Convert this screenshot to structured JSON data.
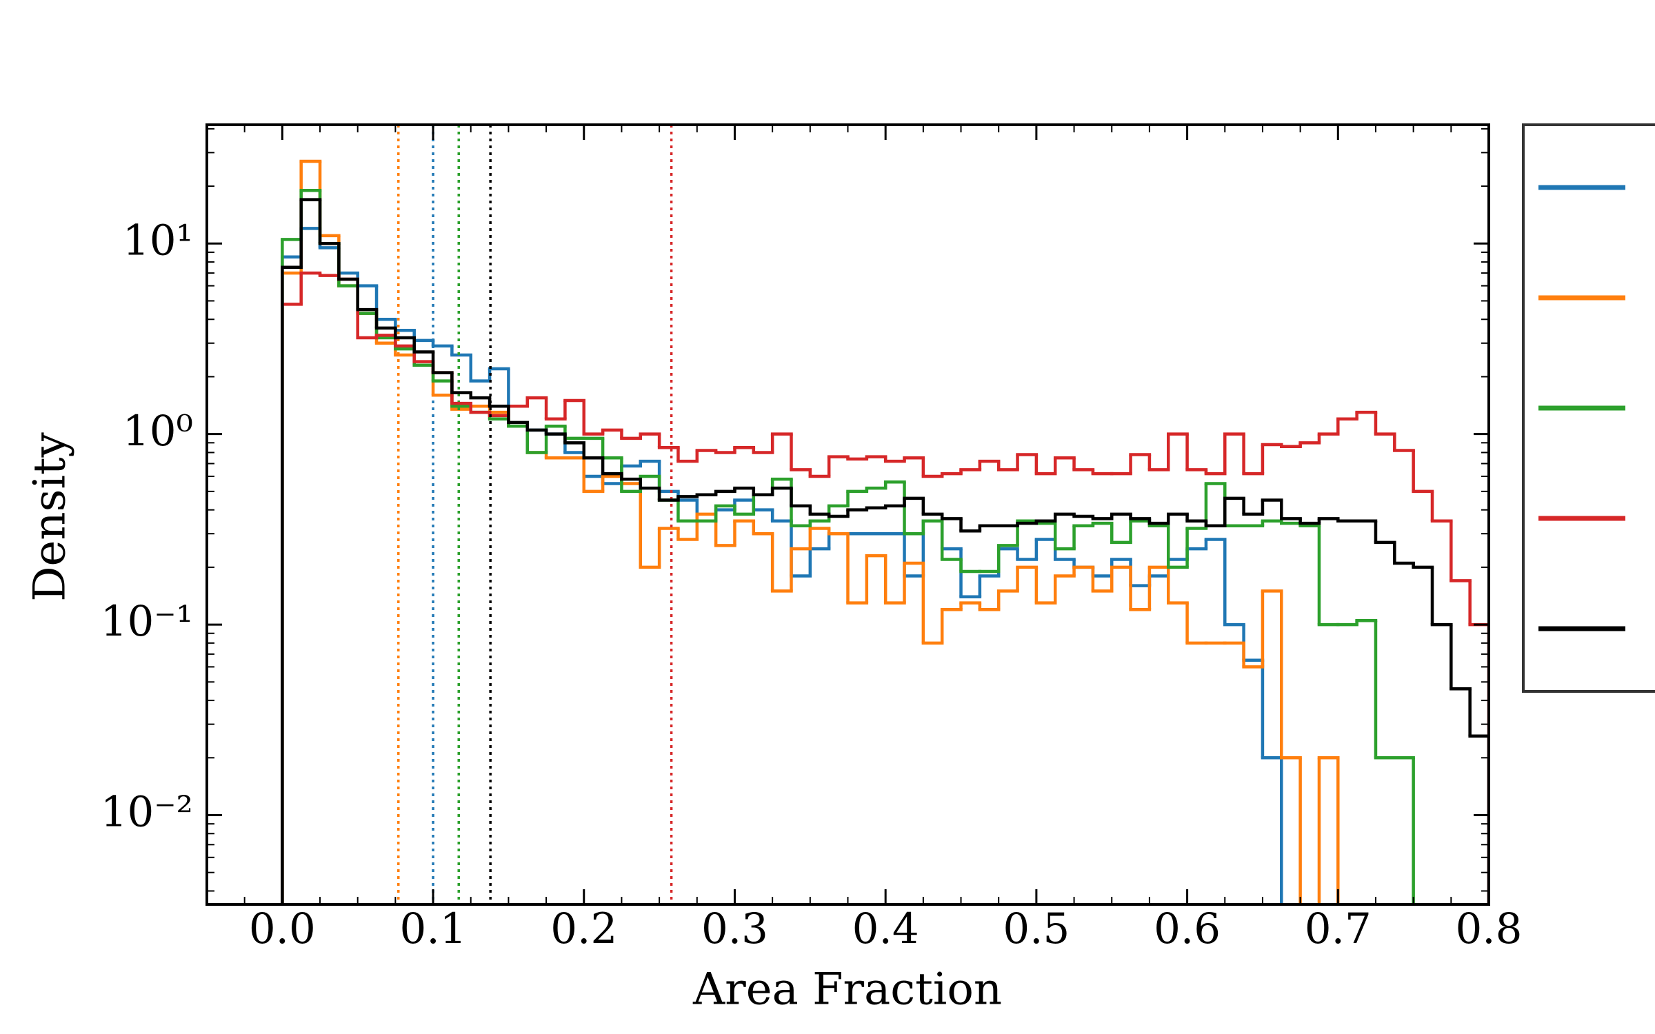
{
  "chart_data": {
    "type": "histogram",
    "x_label": "Area Fraction",
    "y_label": "Density",
    "xlim": [
      -0.05,
      0.8
    ],
    "xticks": [
      {
        "value": 0,
        "label": "0.0"
      },
      0.1,
      0.2,
      0.3,
      0.4,
      0.5,
      0.6,
      0.7,
      0.8
    ],
    "ylim": [
      0.0034,
      42
    ],
    "y_scale": "log",
    "yticks": [
      {
        "value": 0.01,
        "label": "10⁻²"
      },
      {
        "value": 0.1,
        "label": "10⁻¹"
      },
      {
        "value": 1,
        "label": "10⁰"
      },
      {
        "value": 10,
        "label": "10¹"
      }
    ],
    "bins": [
      0,
      0.0125,
      0.025,
      0.0375,
      0.05,
      0.0625,
      0.075,
      0.0875,
      0.1,
      0.1125,
      0.125,
      0.1375,
      0.15,
      0.1625,
      0.175,
      0.1875,
      0.2,
      0.2125,
      0.225,
      0.2375,
      0.25,
      0.2625,
      0.275,
      0.2875,
      0.3,
      0.3125,
      0.325,
      0.3375,
      0.35,
      0.3625,
      0.375,
      0.3875,
      0.4,
      0.4125,
      0.425,
      0.4375,
      0.45,
      0.4625,
      0.475,
      0.4875,
      0.5,
      0.5125,
      0.525,
      0.5375,
      0.55,
      0.5625,
      0.575,
      0.5875,
      0.6,
      0.6125,
      0.625,
      0.6375,
      0.65,
      0.6625,
      0.675,
      0.6875,
      0.7,
      0.7125,
      0.725,
      0.7375,
      0.75,
      0.7625,
      0.775,
      0.7875,
      0.8
    ],
    "series": [
      {
        "color": "#1f77b4",
        "mean": 0.1,
        "values": [
          8.5,
          12,
          9.5,
          7,
          6,
          4,
          3.5,
          3.1,
          2.9,
          2.6,
          1.9,
          2.2,
          1.1,
          1.05,
          1.0,
          0.8,
          0.6,
          0.55,
          0.68,
          0.72,
          0.5,
          0.45,
          0.35,
          0.4,
          0.45,
          0.4,
          0.35,
          0.18,
          0.25,
          0.3,
          0.3,
          0.3,
          0.3,
          0.18,
          0.35,
          0.25,
          0.14,
          0.18,
          0.25,
          0.22,
          0.28,
          0.22,
          0.2,
          0.18,
          0.22,
          0.16,
          0.18,
          0.22,
          0.25,
          0.28,
          0.1,
          0.065,
          0.02,
          0,
          0,
          0,
          0,
          0,
          0,
          0,
          0,
          0,
          0,
          0
        ]
      },
      {
        "color": "#ff7f0e",
        "mean": 0.077,
        "values": [
          7,
          27,
          11,
          6,
          4.3,
          3,
          2.6,
          2.3,
          1.6,
          1.35,
          1.4,
          1.3,
          1.1,
          0.8,
          0.75,
          0.75,
          0.5,
          0.6,
          0.55,
          0.2,
          0.32,
          0.28,
          0.38,
          0.26,
          0.35,
          0.3,
          0.15,
          0.25,
          0.32,
          0.3,
          0.13,
          0.23,
          0.13,
          0.21,
          0.08,
          0.12,
          0.13,
          0.12,
          0.15,
          0.2,
          0.13,
          0.18,
          0.2,
          0.15,
          0.2,
          0.12,
          0.2,
          0.13,
          0.08,
          0.08,
          0.08,
          0.06,
          0.15,
          0.02,
          0,
          0.02,
          0,
          0,
          0,
          0,
          0,
          0,
          0,
          0
        ]
      },
      {
        "color": "#2ca02c",
        "mean": 0.117,
        "values": [
          10.5,
          19,
          10,
          6,
          4.3,
          3.2,
          2.8,
          2.3,
          1.9,
          1.4,
          1.3,
          1.2,
          1.1,
          0.8,
          1.1,
          0.95,
          0.95,
          0.75,
          0.5,
          0.6,
          0.45,
          0.35,
          0.35,
          0.42,
          0.38,
          0.48,
          0.58,
          0.33,
          0.35,
          0.42,
          0.5,
          0.52,
          0.56,
          0.3,
          0.35,
          0.22,
          0.19,
          0.19,
          0.26,
          0.35,
          0.34,
          0.25,
          0.33,
          0.34,
          0.27,
          0.35,
          0.33,
          0.2,
          0.32,
          0.55,
          0.33,
          0.33,
          0.35,
          0.34,
          0.33,
          0.1,
          0.1,
          0.105,
          0.02,
          0.02,
          0,
          0,
          0,
          0
        ]
      },
      {
        "color": "#d62728",
        "mean": 0.258,
        "values": [
          4.8,
          7,
          6.8,
          6.5,
          3.2,
          3.3,
          2.9,
          2.4,
          2.1,
          1.45,
          1.3,
          1.25,
          1.4,
          1.55,
          1.2,
          1.5,
          1.0,
          1.05,
          0.95,
          1.0,
          0.85,
          0.72,
          0.82,
          0.8,
          0.85,
          0.8,
          1.0,
          0.65,
          0.6,
          0.76,
          0.74,
          0.76,
          0.72,
          0.75,
          0.6,
          0.62,
          0.65,
          0.72,
          0.65,
          0.78,
          0.62,
          0.75,
          0.65,
          0.62,
          0.62,
          0.78,
          0.65,
          1.0,
          0.65,
          0.62,
          1.0,
          0.62,
          0.88,
          0.86,
          0.9,
          1.0,
          1.2,
          1.3,
          1.0,
          0.82,
          0.5,
          0.35,
          0.17,
          0.1
        ]
      },
      {
        "color": "#000000",
        "mean": 0.138,
        "values": [
          7.5,
          17,
          10,
          6.5,
          4.5,
          3.6,
          3.2,
          2.7,
          2.1,
          1.65,
          1.55,
          1.4,
          1.15,
          1.05,
          1.0,
          0.9,
          0.75,
          0.62,
          0.58,
          0.52,
          0.45,
          0.47,
          0.48,
          0.5,
          0.52,
          0.48,
          0.52,
          0.42,
          0.38,
          0.37,
          0.4,
          0.41,
          0.42,
          0.46,
          0.38,
          0.36,
          0.31,
          0.33,
          0.33,
          0.34,
          0.35,
          0.38,
          0.37,
          0.36,
          0.38,
          0.36,
          0.34,
          0.38,
          0.35,
          0.33,
          0.46,
          0.38,
          0.45,
          0.36,
          0.34,
          0.36,
          0.35,
          0.35,
          0.27,
          0.21,
          0.2,
          0.1,
          0.046,
          0.026
        ]
      }
    ]
  }
}
